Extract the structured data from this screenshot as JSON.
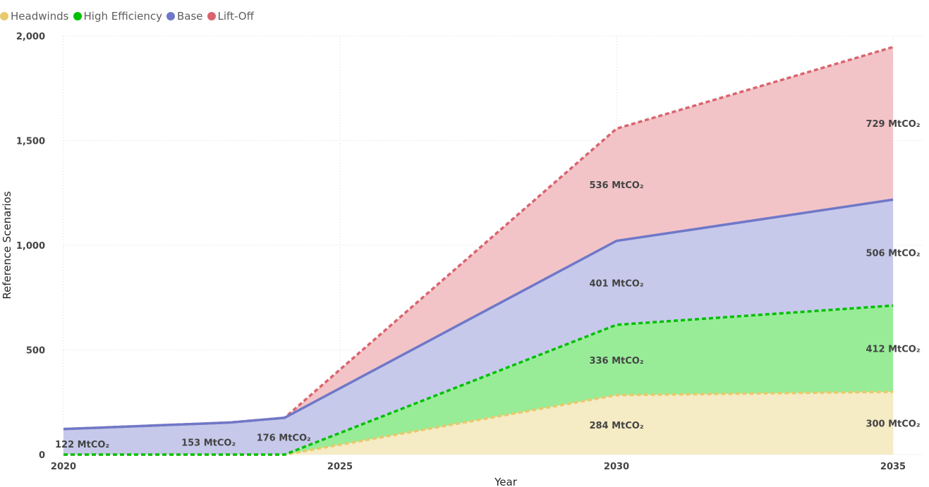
{
  "chart_data": {
    "type": "area",
    "xlabel": "Year",
    "ylabel": "Reference Scenarios",
    "xlim": [
      2020,
      2035
    ],
    "ylim": [
      0,
      2000
    ],
    "x_ticks": [
      "2020",
      "2025",
      "2030",
      "2035"
    ],
    "y_ticks": [
      "0",
      "500",
      "1,000",
      "1,500",
      "2,000"
    ],
    "grid": true,
    "legend_position": "top-left",
    "x": [
      2020,
      2023,
      2024,
      2030,
      2035
    ],
    "series": [
      {
        "name": "Headwinds",
        "color": "#E8C96B",
        "line_style": "dashed",
        "fill": "#F5EBC4",
        "values": [
          0,
          0,
          0,
          284,
          300
        ],
        "labels": [
          "",
          "",
          "",
          "284 MtCO₂",
          "300 MtCO₂"
        ]
      },
      {
        "name": "High Efficiency",
        "color": "#00C000",
        "line_style": "dashed",
        "fill": "#98EC98",
        "values": [
          0,
          0,
          0,
          620,
          712
        ],
        "labels": [
          "",
          "",
          "",
          "336 MtCO₂",
          "412 MtCO₂"
        ]
      },
      {
        "name": "Base",
        "color": "#6F78C8",
        "line_style": "solid",
        "fill": "#C6C9EA",
        "values": [
          122,
          153,
          176,
          1021,
          1218
        ],
        "labels": [
          "122 MtCO₂",
          "153 MtCO₂",
          "176 MtCO₂",
          "401 MtCO₂",
          "506 MtCO₂"
        ]
      },
      {
        "name": "Lift-Off",
        "color": "#D9646E",
        "line_style": "dashed",
        "fill": "#F2C4C8",
        "values": [
          122,
          153,
          176,
          1557,
          1947
        ],
        "labels": [
          "",
          "",
          "",
          "536 MtCO₂",
          "729 MtCO₂"
        ]
      }
    ]
  }
}
